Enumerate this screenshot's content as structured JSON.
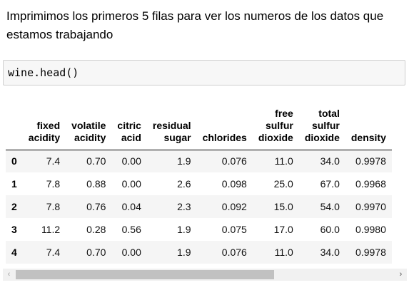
{
  "intro_text": "Imprimimos los primeros 5 filas para ver los numeros de los datos que estamos trabajando",
  "code": "wine.head()",
  "table": {
    "columns": [
      {
        "lines": [
          "fixed",
          "acidity"
        ]
      },
      {
        "lines": [
          "volatile",
          "acidity"
        ]
      },
      {
        "lines": [
          "citric",
          "acid"
        ]
      },
      {
        "lines": [
          "residual",
          "sugar"
        ]
      },
      {
        "lines": [
          "chlorides"
        ]
      },
      {
        "lines": [
          "free",
          "sulfur",
          "dioxide"
        ]
      },
      {
        "lines": [
          "total",
          "sulfur",
          "dioxide"
        ]
      },
      {
        "lines": [
          "density"
        ]
      }
    ],
    "rows": [
      {
        "index": "0",
        "values": [
          "7.4",
          "0.70",
          "0.00",
          "1.9",
          "0.076",
          "11.0",
          "34.0",
          "0.9978"
        ]
      },
      {
        "index": "1",
        "values": [
          "7.8",
          "0.88",
          "0.00",
          "2.6",
          "0.098",
          "25.0",
          "67.0",
          "0.9968"
        ]
      },
      {
        "index": "2",
        "values": [
          "7.8",
          "0.76",
          "0.04",
          "2.3",
          "0.092",
          "15.0",
          "54.0",
          "0.9970"
        ]
      },
      {
        "index": "3",
        "values": [
          "11.2",
          "0.28",
          "0.56",
          "1.9",
          "0.075",
          "17.0",
          "60.0",
          "0.9980"
        ]
      },
      {
        "index": "4",
        "values": [
          "7.4",
          "0.70",
          "0.00",
          "1.9",
          "0.076",
          "11.0",
          "34.0",
          "0.9978"
        ]
      }
    ]
  },
  "scrollbar": {
    "left_arrow_icon": "chevron-left-icon",
    "right_arrow_icon": "chevron-right-icon",
    "left_arrow_glyph": "‹",
    "right_arrow_glyph": "›"
  }
}
